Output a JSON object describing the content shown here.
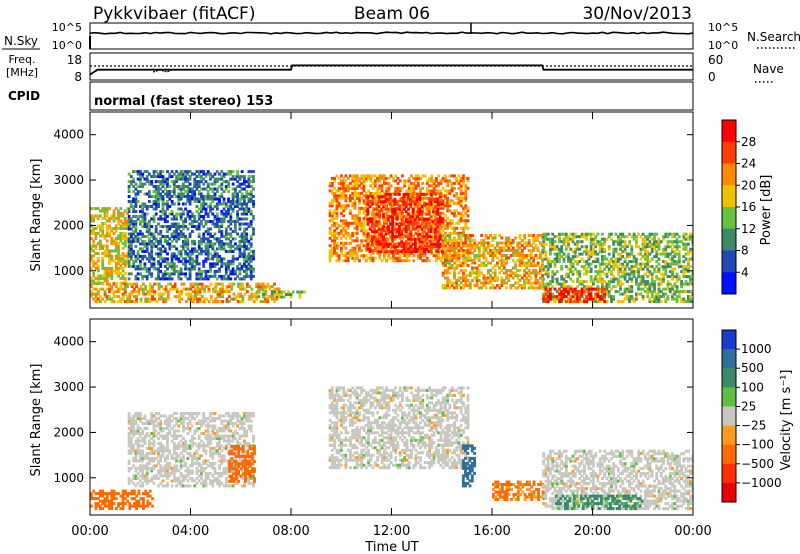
{
  "header": {
    "station": "Pykkvibaer (fitACF)",
    "beam": "Beam 06",
    "date": "30/Nov/2013"
  },
  "nsky_panel": {
    "label": "N.Sky",
    "right_label": "N.Search",
    "left_ticks": [
      "10^5",
      "10^0"
    ],
    "right_ticks": [
      "10^5",
      "10^0"
    ]
  },
  "freq_panel": {
    "label_line1": "Freq.",
    "label_line2": "[MHz]",
    "left_ticks": [
      "18",
      "8"
    ],
    "right_ticks": [
      "60",
      "0"
    ],
    "right_label": "Nave"
  },
  "cpid_panel": {
    "label": "CPID",
    "text": "normal (fast stereo) 153"
  },
  "range_axis": {
    "label": "Slant Range [km]",
    "ticks": [
      "4000",
      "3000",
      "2000",
      "1000"
    ]
  },
  "time_axis": {
    "label": "Time UT",
    "ticks": [
      "00:00",
      "04:00",
      "08:00",
      "12:00",
      "16:00",
      "20:00",
      "00:00"
    ]
  },
  "power_colorbar": {
    "label": "Power [dB]",
    "ticks": [
      "28",
      "24",
      "20",
      "16",
      "12",
      "8",
      "4"
    ],
    "colors": [
      "#0010ff",
      "#2248b8",
      "#3c8a6a",
      "#68c040",
      "#f2c200",
      "#ff8a00",
      "#ff4000",
      "#ff0000"
    ]
  },
  "velocity_colorbar": {
    "label": "Velocity [m s⁻¹]",
    "ticks": [
      "1000",
      "500",
      "100",
      "25",
      "−25",
      "−100",
      "−500",
      "−1000"
    ],
    "colors": [
      "#1a3cc8",
      "#2f6f9a",
      "#3c8a6a",
      "#5cc040",
      "#c8c8c0",
      "#ff9a20",
      "#ff6a00",
      "#ff3000",
      "#e80000"
    ]
  },
  "chart_data": [
    {
      "type": "line",
      "title": "N.Sky",
      "x_unit": "hours UT",
      "x": [
        0,
        24
      ],
      "values": [
        10000.0,
        10000.0
      ],
      "yscale": "log"
    },
    {
      "type": "line",
      "title": "Freq.",
      "x_unit": "hours UT",
      "x": [
        0,
        0.3,
        8.0,
        8.05,
        18.0,
        18.05,
        24.0
      ],
      "values": [
        10.0,
        11.8,
        11.8,
        13.4,
        13.4,
        11.8,
        11.8
      ],
      "ylim": [
        8,
        18
      ],
      "yunits": "MHz"
    },
    {
      "type": "heatmap",
      "title": "Power [dB]",
      "xlim_hours": [
        0,
        24
      ],
      "ylim_km": [
        180,
        4500
      ],
      "regions": [
        {
          "t0": 0.0,
          "t1": 1.5,
          "r0": 700,
          "r1": 2400,
          "power_dB": 18
        },
        {
          "t0": 0.0,
          "t1": 7.5,
          "r0": 300,
          "r1": 700,
          "power_dB": 20
        },
        {
          "t0": 1.5,
          "t1": 6.5,
          "r0": 800,
          "r1": 3200,
          "power_dB": 8
        },
        {
          "t0": 6.5,
          "t1": 8.5,
          "r0": 400,
          "r1": 550,
          "power_dB": 14
        },
        {
          "t0": 9.5,
          "t1": 15.0,
          "r0": 1200,
          "r1": 3100,
          "power_dB": 22
        },
        {
          "t0": 11.0,
          "t1": 14.0,
          "r0": 1400,
          "r1": 2700,
          "power_dB": 28
        },
        {
          "t0": 14.0,
          "t1": 18.0,
          "r0": 600,
          "r1": 1800,
          "power_dB": 20
        },
        {
          "t0": 18.0,
          "t1": 24.0,
          "r0": 300,
          "r1": 1800,
          "power_dB": 14
        },
        {
          "t0": 18.0,
          "t1": 20.5,
          "r0": 300,
          "r1": 600,
          "power_dB": 28
        }
      ]
    },
    {
      "type": "heatmap",
      "title": "Velocity [m s⁻¹]",
      "xlim_hours": [
        0,
        24
      ],
      "ylim_km": [
        180,
        4500
      ],
      "regions": [
        {
          "t0": 0.0,
          "t1": 2.5,
          "r0": 300,
          "r1": 700,
          "velocity_ms": -250
        },
        {
          "t0": 1.5,
          "t1": 6.5,
          "r0": 800,
          "r1": 2400,
          "velocity_ms": 0
        },
        {
          "t0": 5.5,
          "t1": 6.5,
          "r0": 900,
          "r1": 1700,
          "velocity_ms": -300
        },
        {
          "t0": 9.5,
          "t1": 15.0,
          "r0": 1200,
          "r1": 3000,
          "velocity_ms": 0
        },
        {
          "t0": 14.8,
          "t1": 15.3,
          "r0": 800,
          "r1": 1700,
          "velocity_ms": 800
        },
        {
          "t0": 16.0,
          "t1": 18.0,
          "r0": 500,
          "r1": 900,
          "velocity_ms": -120
        },
        {
          "t0": 18.0,
          "t1": 24.0,
          "r0": 300,
          "r1": 1600,
          "velocity_ms": 0
        },
        {
          "t0": 18.5,
          "t1": 22.0,
          "r0": 300,
          "r1": 600,
          "velocity_ms": 150
        }
      ]
    }
  ]
}
